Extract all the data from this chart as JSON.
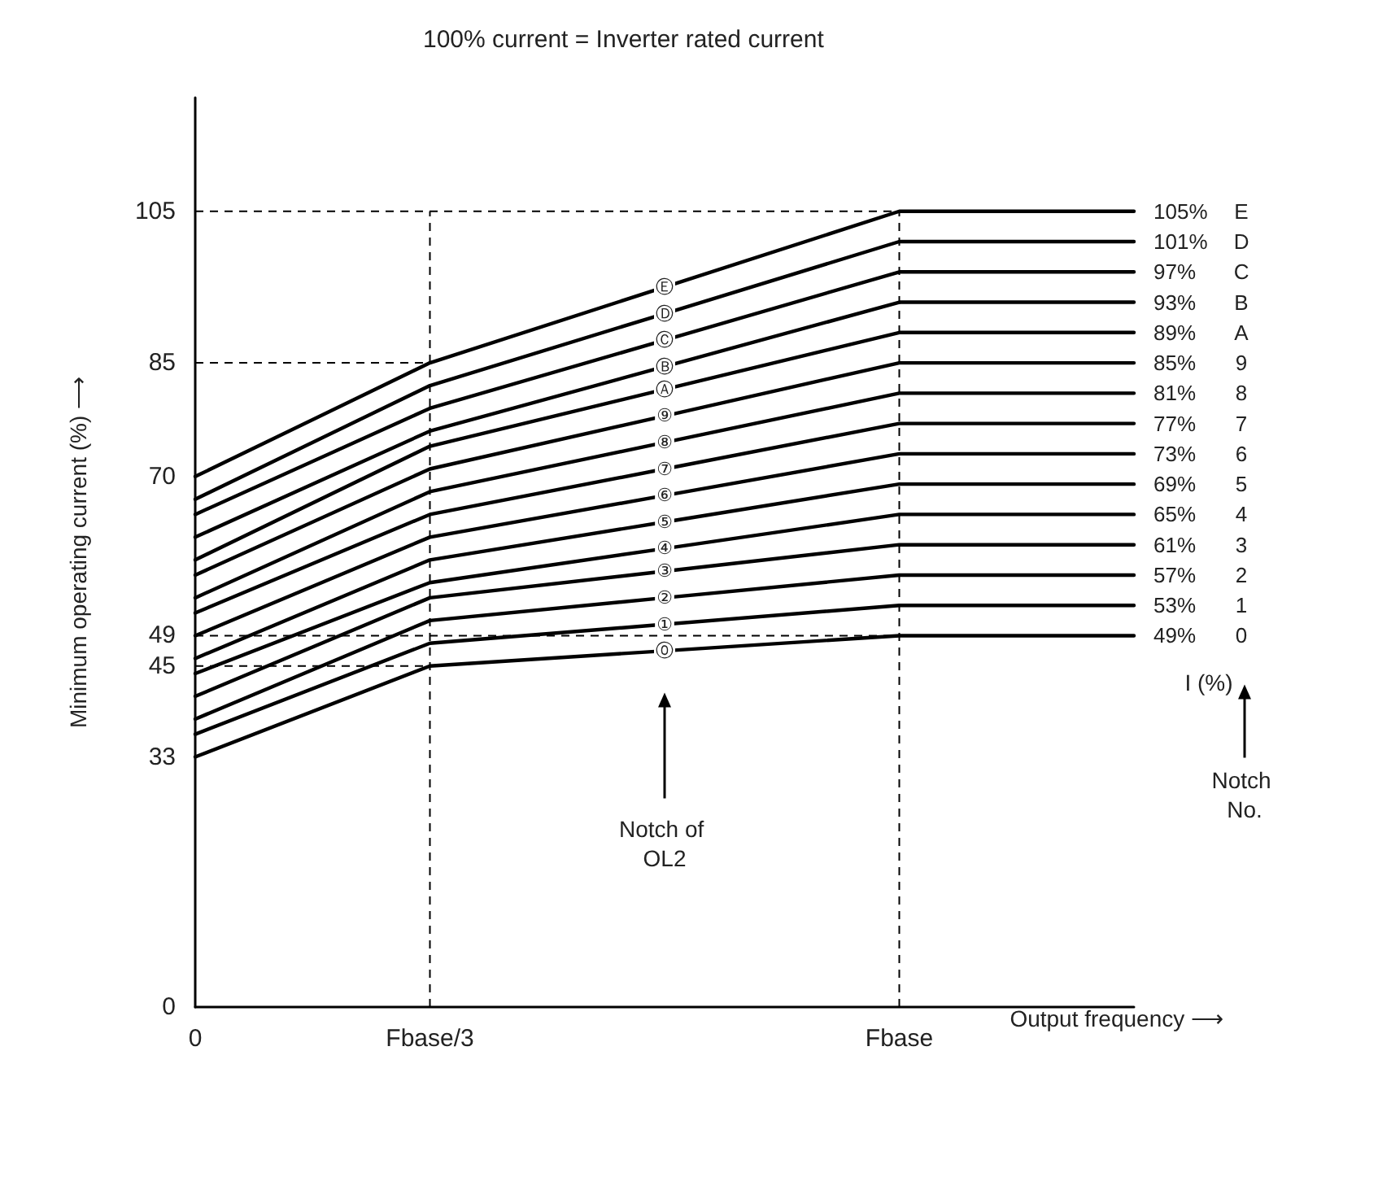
{
  "chart_data": {
    "type": "line",
    "title": "100% current = Inverter rated current",
    "xlabel": "Output frequency ⟶",
    "ylabel": "Minimum operating current (%) ⟶",
    "categories": [
      "0",
      "Fbase/3",
      null,
      "Fbase",
      null
    ],
    "ylim": [
      0,
      120
    ],
    "yticks": [
      0,
      33,
      45,
      49,
      70,
      85,
      105
    ],
    "grid": false,
    "legend": false,
    "marker": "none",
    "line_style": "solid",
    "series": [
      {
        "name": "49%",
        "color": "#000000",
        "values": [
          33,
          45,
          47,
          49,
          49
        ]
      },
      {
        "name": "53%",
        "color": "#000000",
        "values": [
          36,
          48,
          50.5,
          53,
          53
        ]
      },
      {
        "name": "57%",
        "color": "#000000",
        "values": [
          38,
          51,
          54,
          57,
          57
        ]
      },
      {
        "name": "61%",
        "color": "#000000",
        "values": [
          41,
          54,
          57.5,
          61,
          61
        ]
      },
      {
        "name": "65%",
        "color": "#000000",
        "values": [
          44,
          56,
          60.5,
          65,
          65
        ]
      },
      {
        "name": "69%",
        "color": "#000000",
        "values": [
          46,
          59,
          64,
          69,
          69
        ]
      },
      {
        "name": "73%",
        "color": "#000000",
        "values": [
          49,
          62,
          67.5,
          73,
          73
        ]
      },
      {
        "name": "77%",
        "color": "#000000",
        "values": [
          52,
          65,
          71,
          77,
          77
        ]
      },
      {
        "name": "81%",
        "color": "#000000",
        "values": [
          54,
          68,
          74.5,
          81,
          81
        ]
      },
      {
        "name": "85%",
        "color": "#000000",
        "values": [
          57,
          71,
          78,
          85,
          85
        ]
      },
      {
        "name": "89%",
        "color": "#000000",
        "values": [
          59,
          74,
          81.5,
          89,
          89
        ]
      },
      {
        "name": "93%",
        "color": "#000000",
        "values": [
          62,
          76,
          84.5,
          93,
          93
        ]
      },
      {
        "name": "97%",
        "color": "#000000",
        "values": [
          65,
          79,
          88,
          97,
          97
        ]
      },
      {
        "name": "101%",
        "color": "#000000",
        "values": [
          67,
          82,
          91.5,
          101,
          101
        ]
      },
      {
        "name": "105%",
        "color": "#000000",
        "values": [
          70,
          85,
          95,
          105,
          105
        ]
      }
    ],
    "ref_lines": [
      {
        "axis": "y",
        "value": 105,
        "line_style": "dashed"
      },
      {
        "axis": "y",
        "value": 85,
        "line_style": "dashed"
      },
      {
        "axis": "y",
        "value": 49,
        "line_style": "dashed"
      },
      {
        "axis": "y",
        "value": 45,
        "line_style": "dashed"
      },
      {
        "axis": "x",
        "value": "Fbase/3",
        "line_style": "dashed"
      },
      {
        "axis": "x",
        "value": "Fbase",
        "line_style": "dashed"
      }
    ],
    "annotations": [
      "I (%)",
      "Notch No.",
      "Notch of OL2",
      "0",
      "1",
      "2",
      "3",
      "4",
      "5",
      "6",
      "7",
      "8",
      "9",
      "A",
      "B",
      "C",
      "D",
      "E",
      {
        "text": "⓪",
        "y": 47
      },
      {
        "text": "①",
        "y": 50.5
      },
      {
        "text": "②",
        "y": 54
      },
      {
        "text": "③",
        "y": 57.5
      },
      {
        "text": "④",
        "y": 60.5
      },
      {
        "text": "⑤",
        "y": 64
      },
      {
        "text": "⑥",
        "y": 67.5
      },
      {
        "text": "⑦",
        "y": 71
      },
      {
        "text": "⑧",
        "y": 74.5
      },
      {
        "text": "⑨",
        "y": 78
      },
      {
        "text": "Ⓐ",
        "y": 81.5
      },
      {
        "text": "Ⓑ",
        "y": 84.5
      },
      {
        "text": "Ⓒ",
        "y": 88
      },
      {
        "text": "Ⓓ",
        "y": 91.5
      },
      {
        "text": "Ⓔ",
        "y": 95
      }
    ]
  }
}
